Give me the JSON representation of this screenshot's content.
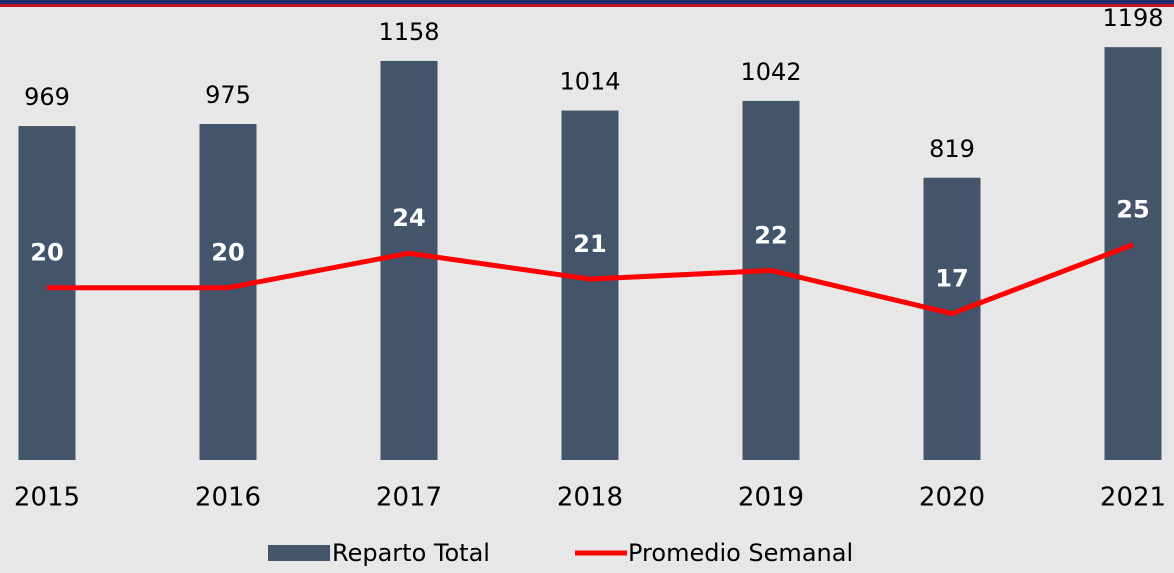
{
  "chart_data": {
    "type": "bar_line",
    "categories": [
      "2015",
      "2016",
      "2017",
      "2018",
      "2019",
      "2020",
      "2021"
    ],
    "series": [
      {
        "name": "Reparto Total",
        "type": "bar",
        "color": "#44546a",
        "values": [
          969,
          975,
          1158,
          1014,
          1042,
          819,
          1198
        ]
      },
      {
        "name": "Promedio Semanal",
        "type": "line",
        "color": "#ff0000",
        "axis": "y2",
        "values": [
          20,
          20,
          24,
          21,
          22,
          17,
          25
        ]
      }
    ],
    "ylim": [
      0,
      1300
    ],
    "y2lim": [
      0,
      52
    ],
    "legend": "bottom"
  }
}
